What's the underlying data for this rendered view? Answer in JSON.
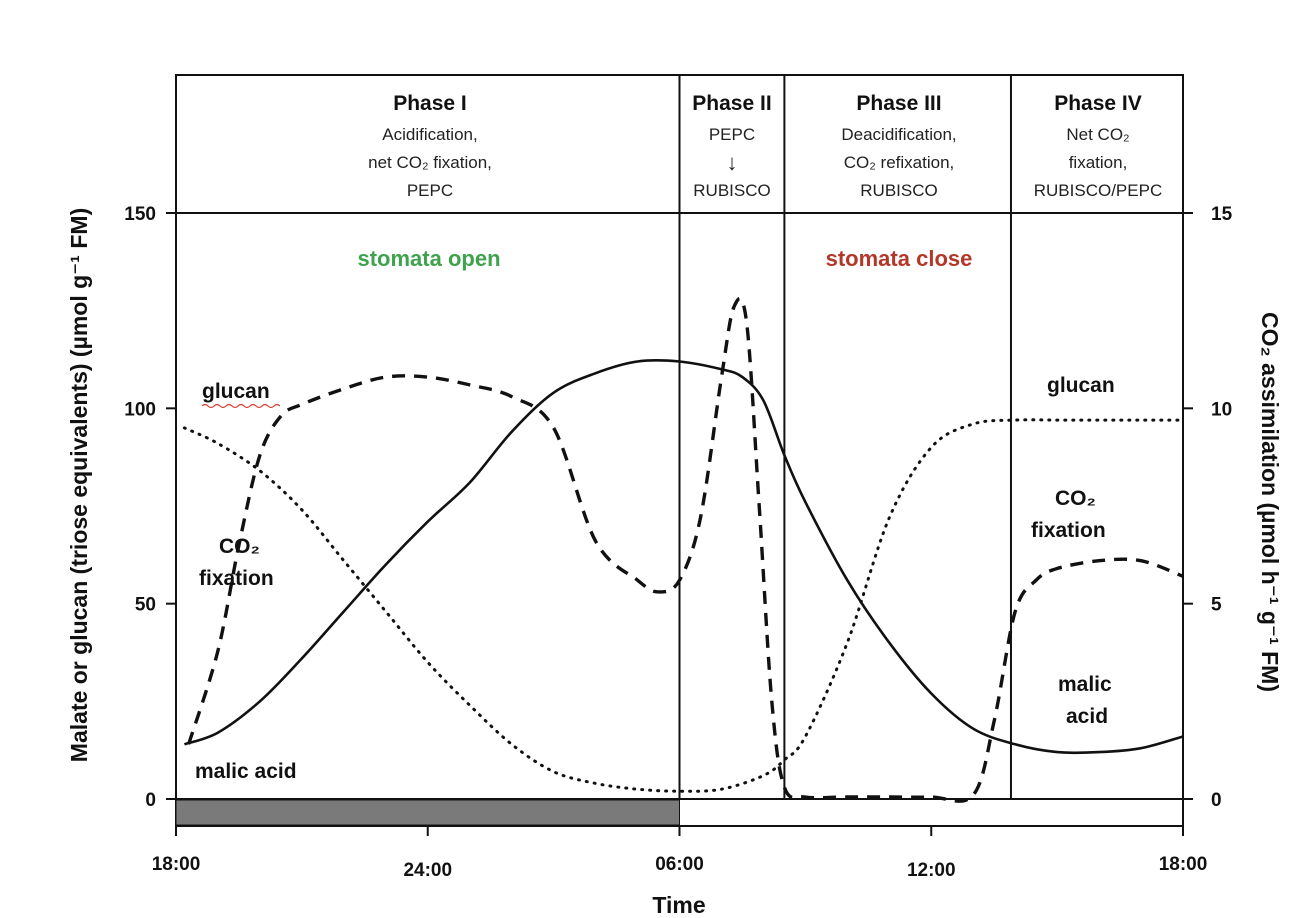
{
  "chart_data": {
    "type": "line",
    "xlabel": "Time",
    "ylabel_left": "Malate or glucan (triose equivalents) (µmol g⁻¹ FM)",
    "ylabel_right": "CO₂ assimilation (µmol h⁻¹ g⁻¹ FM)",
    "x_ticks": [
      "18:00",
      "24:00",
      "06:00",
      "12:00",
      "18:00"
    ],
    "x_tick_hours": [
      0,
      6,
      12,
      18,
      24
    ],
    "xlim_hours_from_18": [
      0,
      24
    ],
    "y_left_ticks": [
      0,
      50,
      100,
      150
    ],
    "y_right_ticks": [
      0,
      5,
      10,
      15
    ],
    "ylim_left": [
      0,
      150
    ],
    "ylim_right": [
      0,
      15
    ],
    "dark_period_hours_from_18": [
      0,
      12
    ],
    "phases": [
      {
        "title": "Phase I",
        "lines": [
          "Acidification,",
          "net CO₂ fixation,",
          "PEPC"
        ],
        "start": 0,
        "end": 12
      },
      {
        "title": "Phase II",
        "lines": [
          "PEPC",
          "↓",
          "RUBISCO"
        ],
        "start": 12,
        "end": 14.5
      },
      {
        "title": "Phase III",
        "lines": [
          "Deacidification,",
          "CO₂ refixation,",
          "RUBISCO"
        ],
        "start": 14.5,
        "end": 19.9
      },
      {
        "title": "Phase IV",
        "lines": [
          "Net CO₂",
          "fixation,",
          "RUBISCO/PEPC"
        ],
        "start": 19.9,
        "end": 24
      }
    ],
    "annotations": {
      "stomata_open": "stomata open",
      "stomata_close": "stomata close",
      "glucan_left": "glucan",
      "co2_left_1": "CO₂",
      "co2_left_2": "fixation",
      "malic_left": "malic acid",
      "glucan_right": "glucan",
      "co2_right_1": "CO₂",
      "co2_right_2": "fixation",
      "malic_right_1": "malic",
      "malic_right_2": "acid"
    },
    "series": [
      {
        "name": "malic acid",
        "axis": "left",
        "style": "solid",
        "x": [
          0.2,
          1,
          2,
          3,
          4,
          5,
          6,
          7,
          8,
          9,
          10,
          11,
          12,
          13,
          13.5,
          14,
          14.5,
          15,
          16,
          17,
          18,
          19,
          20,
          21,
          22,
          23,
          24
        ],
        "y": [
          14,
          17,
          25,
          36,
          48,
          60,
          71,
          81,
          94,
          104,
          109,
          112,
          112,
          110,
          108,
          102,
          88,
          76,
          56,
          40,
          27,
          18,
          14,
          12,
          12,
          13,
          16
        ]
      },
      {
        "name": "glucan",
        "axis": "left",
        "style": "dotted",
        "x": [
          0.2,
          1,
          2,
          3,
          4,
          5,
          6,
          7,
          8,
          9,
          10,
          11,
          12,
          13,
          14,
          14.5,
          15,
          16,
          17,
          18,
          19,
          20,
          21,
          22,
          23,
          24
        ],
        "y": [
          95,
          91,
          84,
          74,
          61,
          48,
          35,
          24,
          14,
          7,
          4,
          2.5,
          2,
          2.5,
          6,
          10,
          16,
          40,
          72,
          90,
          96,
          97,
          97,
          97,
          97,
          97
        ]
      },
      {
        "name": "CO₂ fixation",
        "axis": "right",
        "style": "dashed",
        "x": [
          0.3,
          1,
          1.5,
          2,
          2.5,
          3,
          4,
          5,
          6,
          7,
          8,
          9,
          10,
          11,
          11.5,
          12,
          12.5,
          13,
          13.3,
          13.6,
          13.9,
          14.2,
          14.5,
          15,
          16,
          17,
          18,
          19,
          19.5,
          20,
          20.5,
          21,
          22,
          23,
          24
        ],
        "y": [
          1.4,
          3.8,
          6.5,
          8.8,
          9.8,
          10.1,
          10.5,
          10.8,
          10.8,
          10.6,
          10.3,
          9.5,
          6.6,
          5.6,
          5.3,
          5.6,
          7.2,
          10.8,
          12.6,
          12.2,
          7.5,
          2.5,
          0.3,
          0.05,
          0.05,
          0.05,
          0.05,
          0.1,
          2.0,
          4.8,
          5.6,
          5.9,
          6.1,
          6.1,
          5.7
        ]
      }
    ]
  }
}
